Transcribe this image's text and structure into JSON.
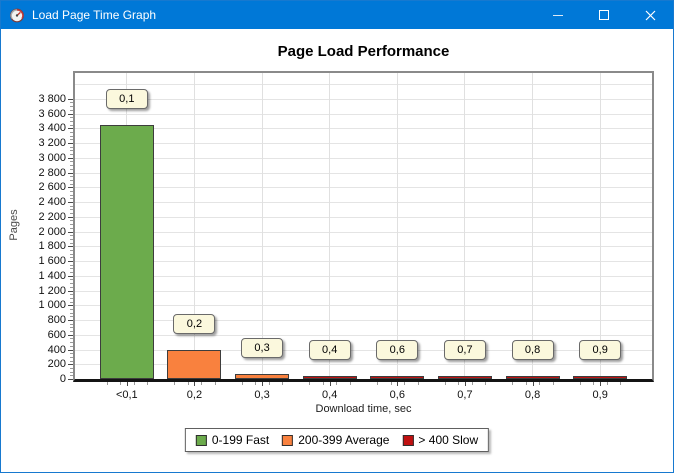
{
  "window": {
    "title": "Load Page Time Graph"
  },
  "theme": {
    "titlebar_color": "#0078d7",
    "window_border_color": "#1779cf",
    "grid_color": "#e4e4e4",
    "callout_bg": "#fbf8dd"
  },
  "chart_data": {
    "type": "bar",
    "title": "Page Load Performance",
    "xlabel": "Download time, sec",
    "ylabel": "Pages",
    "categories": [
      "<0,1",
      "0,2",
      "0,3",
      "0,4",
      "0,6",
      "0,7",
      "0,8",
      "0,9"
    ],
    "values": [
      3450,
      395,
      70,
      20,
      30,
      20,
      30,
      20
    ],
    "bar_callouts": [
      "0,1",
      "0,2",
      "0,3",
      "0,4",
      "0,6",
      "0,7",
      "0,8",
      "0,9"
    ],
    "point_series": [
      "fast",
      "average",
      "average",
      "slow",
      "slow",
      "slow",
      "slow",
      "slow"
    ],
    "series_colors": {
      "fast": "#6cab4c",
      "average": "#f9813e",
      "slow": "#c01010"
    },
    "legend": [
      {
        "key": "fast",
        "label": "0-199 Fast"
      },
      {
        "key": "average",
        "label": "200-399 Average"
      },
      {
        "key": "slow",
        "label": "> 400 Slow"
      }
    ],
    "legend_position": "bottom",
    "grid": true,
    "ylim": [
      0,
      4150
    ],
    "ytick_step": 200,
    "ytick_top": 3800,
    "ytick_minor_step": 50
  }
}
